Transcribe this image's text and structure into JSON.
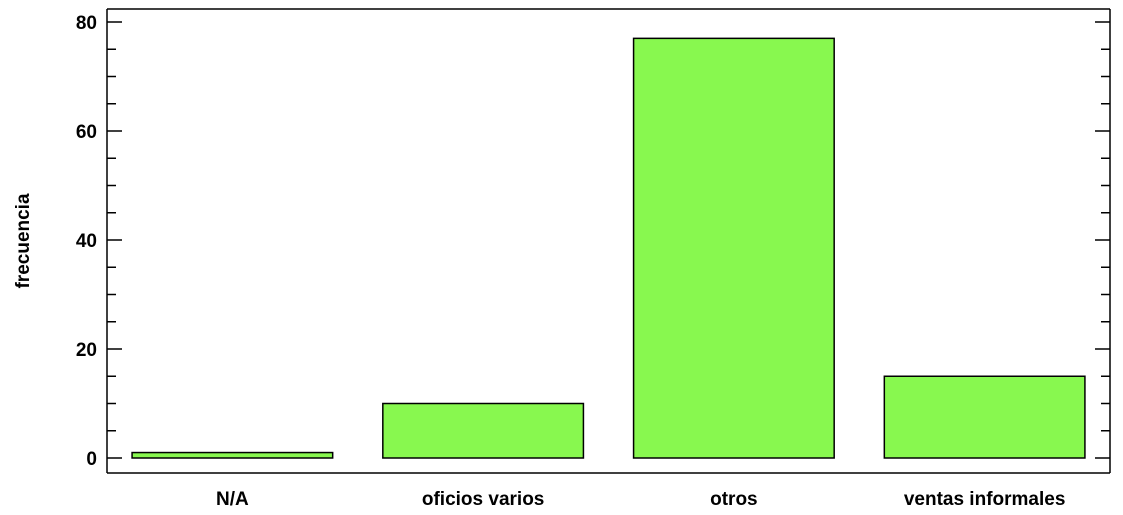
{
  "chart_data": {
    "type": "bar",
    "categories": [
      "N/A",
      "oficios varios",
      "otros",
      "ventas informales"
    ],
    "values": [
      1,
      10,
      77,
      15
    ],
    "title": "",
    "xlabel": "",
    "ylabel": "frecuencia",
    "ylim": [
      0,
      82
    ],
    "yticks": [
      0,
      20,
      40,
      60,
      80
    ],
    "y_minor_step": 5,
    "grid": false,
    "legend": "none",
    "bar_color": "#88F84F",
    "bar_edge_color": "#000000"
  }
}
